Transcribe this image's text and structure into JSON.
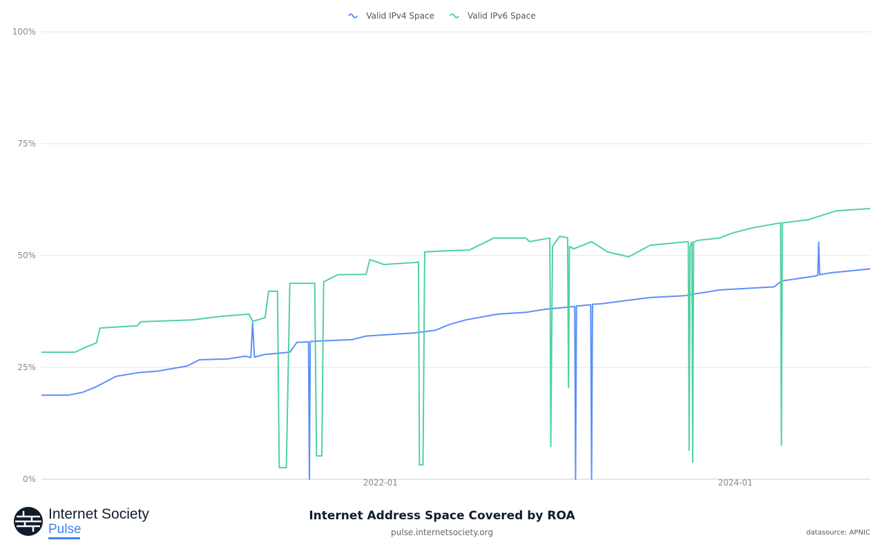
{
  "chart_data": {
    "type": "line",
    "title": "Internet Address Space Covered by ROA",
    "subtitle": "pulse.internetsociety.org",
    "source": "datasource: APNIC",
    "xlabel": "",
    "ylabel": "",
    "xlim": [
      2020.09,
      2024.76
    ],
    "ylim": [
      0,
      100
    ],
    "y_ticks": [
      {
        "v": 0,
        "label": "0%"
      },
      {
        "v": 25,
        "label": "25%"
      },
      {
        "v": 50,
        "label": "50%"
      },
      {
        "v": 75,
        "label": "75%"
      },
      {
        "v": 100,
        "label": "100%"
      }
    ],
    "x_ticks": [
      {
        "v": 2022.0,
        "label": "2022-01"
      },
      {
        "v": 2024.0,
        "label": "2024-01"
      }
    ],
    "grid": true,
    "legend_position": "top-center",
    "series": [
      {
        "name": "Valid IPv4 Space",
        "color": "#5b8ff9",
        "points": [
          [
            2020.09,
            18.8
          ],
          [
            2020.24,
            18.8
          ],
          [
            2020.32,
            19.4
          ],
          [
            2020.4,
            20.7
          ],
          [
            2020.51,
            23.0
          ],
          [
            2020.63,
            23.8
          ],
          [
            2020.75,
            24.2
          ],
          [
            2020.91,
            25.3
          ],
          [
            2020.98,
            26.7
          ],
          [
            2021.14,
            26.9
          ],
          [
            2021.24,
            27.5
          ],
          [
            2021.27,
            27.2
          ],
          [
            2021.28,
            35.0
          ],
          [
            2021.29,
            27.3
          ],
          [
            2021.35,
            27.9
          ],
          [
            2021.49,
            28.4
          ],
          [
            2021.53,
            30.6
          ],
          [
            2021.595,
            30.7
          ],
          [
            2021.6,
            0
          ],
          [
            2021.605,
            30.8
          ],
          [
            2021.72,
            31.0
          ],
          [
            2021.84,
            31.2
          ],
          [
            2021.92,
            32.0
          ],
          [
            2022.19,
            32.7
          ],
          [
            2022.31,
            33.3
          ],
          [
            2022.39,
            34.6
          ],
          [
            2022.48,
            35.6
          ],
          [
            2022.66,
            36.9
          ],
          [
            2022.82,
            37.3
          ],
          [
            2022.93,
            38.0
          ],
          [
            2023.095,
            38.6
          ],
          [
            2023.1,
            0
          ],
          [
            2023.105,
            38.7
          ],
          [
            2023.185,
            39.0
          ],
          [
            2023.19,
            0
          ],
          [
            2023.195,
            39.1
          ],
          [
            2023.24,
            39.2
          ],
          [
            2023.4,
            40.0
          ],
          [
            2023.52,
            40.6
          ],
          [
            2023.71,
            41.0
          ],
          [
            2023.91,
            42.3
          ],
          [
            2024.22,
            43.0
          ],
          [
            2024.26,
            44.3
          ],
          [
            2024.45,
            45.4
          ],
          [
            2024.465,
            45.6
          ],
          [
            2024.47,
            53.0
          ],
          [
            2024.475,
            45.7
          ],
          [
            2024.53,
            46.1
          ],
          [
            2024.76,
            47.0
          ]
        ]
      },
      {
        "name": "Valid IPv6 Space",
        "color": "#4fd1a1",
        "points": [
          [
            2020.09,
            28.4
          ],
          [
            2020.28,
            28.4
          ],
          [
            2020.34,
            29.5
          ],
          [
            2020.4,
            30.5
          ],
          [
            2020.42,
            33.8
          ],
          [
            2020.63,
            34.3
          ],
          [
            2020.65,
            35.2
          ],
          [
            2020.94,
            35.6
          ],
          [
            2021.1,
            36.4
          ],
          [
            2021.26,
            36.9
          ],
          [
            2021.28,
            35.3
          ],
          [
            2021.35,
            36.1
          ],
          [
            2021.37,
            42.0
          ],
          [
            2021.42,
            42.0
          ],
          [
            2021.43,
            2.6
          ],
          [
            2021.47,
            2.6
          ],
          [
            2021.49,
            43.8
          ],
          [
            2021.63,
            43.8
          ],
          [
            2021.64,
            5.2
          ],
          [
            2021.67,
            5.2
          ],
          [
            2021.68,
            44.1
          ],
          [
            2021.76,
            45.7
          ],
          [
            2021.92,
            45.8
          ],
          [
            2021.94,
            49.1
          ],
          [
            2022.02,
            48.0
          ],
          [
            2022.215,
            48.5
          ],
          [
            2022.22,
            3.2
          ],
          [
            2022.24,
            3.2
          ],
          [
            2022.25,
            50.8
          ],
          [
            2022.39,
            51.1
          ],
          [
            2022.5,
            51.2
          ],
          [
            2022.64,
            53.9
          ],
          [
            2022.82,
            53.9
          ],
          [
            2022.84,
            53.1
          ],
          [
            2022.955,
            53.9
          ],
          [
            2022.96,
            7.3
          ],
          [
            2022.97,
            52.0
          ],
          [
            2023.01,
            54.3
          ],
          [
            2023.055,
            54.0
          ],
          [
            2023.06,
            20.5
          ],
          [
            2023.065,
            52.0
          ],
          [
            2023.09,
            51.5
          ],
          [
            2023.19,
            53.1
          ],
          [
            2023.28,
            50.8
          ],
          [
            2023.4,
            49.7
          ],
          [
            2023.52,
            52.3
          ],
          [
            2023.735,
            53.1
          ],
          [
            2023.74,
            6.5
          ],
          [
            2023.745,
            52.0
          ],
          [
            2023.755,
            53.0
          ],
          [
            2023.76,
            3.8
          ],
          [
            2023.765,
            53.0
          ],
          [
            2023.79,
            53.4
          ],
          [
            2023.91,
            53.9
          ],
          [
            2023.99,
            55.1
          ],
          [
            2024.1,
            56.2
          ],
          [
            2024.255,
            57.3
          ],
          [
            2024.26,
            7.6
          ],
          [
            2024.265,
            57.3
          ],
          [
            2024.41,
            58.0
          ],
          [
            2024.49,
            59.0
          ],
          [
            2024.57,
            60.0
          ],
          [
            2024.76,
            60.5
          ]
        ]
      }
    ]
  },
  "branding": {
    "name": "Internet Society",
    "product": "Pulse"
  }
}
